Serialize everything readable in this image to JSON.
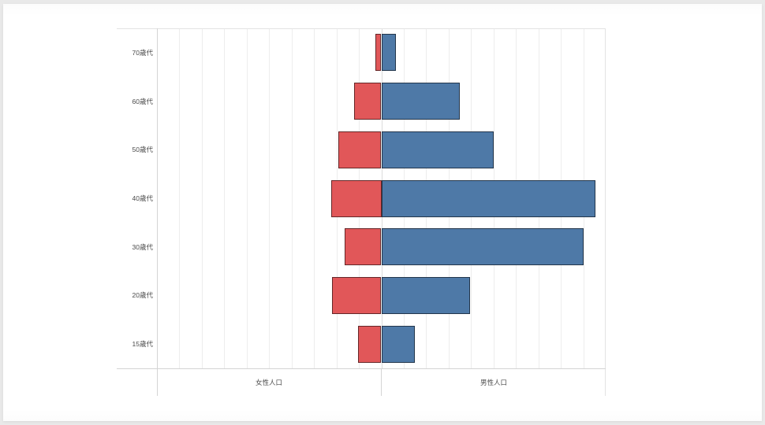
{
  "ui": {
    "page_bg": "#e9e9e9",
    "panel_bg": "#ffffff",
    "grid_color": "#ededed",
    "grid_center_color": "#dcdcdc",
    "axis_color": "#d4d4d4",
    "border_color": "#e3e3e3",
    "label_color": "#4a4a4a",
    "bar_border": "rgba(0,0,0,0.55)"
  },
  "chart_data": {
    "type": "bar",
    "subtype": "population-pyramid",
    "orientation": "horizontal",
    "title": "",
    "categories": [
      "70歳代",
      "60歳代",
      "50歳代",
      "40歳代",
      "30歳代",
      "20歳代",
      "15歳代"
    ],
    "series": [
      {
        "name": "女性人口",
        "side": "left",
        "color": "#e15759",
        "values": [
          0.25,
          1.2,
          1.9,
          2.25,
          1.65,
          2.2,
          1.05
        ]
      },
      {
        "name": "男性人口",
        "side": "right",
        "color": "#4e79a7",
        "values": [
          0.65,
          3.5,
          5.0,
          9.55,
          9.0,
          3.95,
          1.5
        ]
      }
    ],
    "axis": {
      "min": -10,
      "max": 10,
      "gridline_step": 1,
      "numeric_tick_labels_visible": false
    },
    "xlabel_left": "女性人口",
    "xlabel_right": "男性人口",
    "grid": true,
    "legend": "none"
  }
}
